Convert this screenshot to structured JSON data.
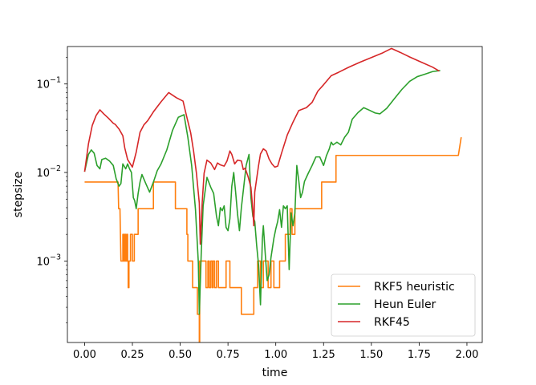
{
  "chart_data": {
    "type": "line",
    "title": "",
    "xlabel": "time",
    "ylabel": "stepsize",
    "xlim": [
      -0.09,
      2.08
    ],
    "ylim": [
      0.00012,
      0.265
    ],
    "yscale": "log",
    "grid": false,
    "legend_position": "lower-right",
    "x_ticks": [
      0.0,
      0.25,
      0.5,
      0.75,
      1.0,
      1.25,
      1.5,
      1.75,
      2.0
    ],
    "x_tick_labels": [
      "0.00",
      "0.25",
      "0.50",
      "0.75",
      "1.00",
      "1.25",
      "1.50",
      "1.75",
      "2.00"
    ],
    "y_ticks": [
      0.001,
      0.01,
      0.1
    ],
    "y_tick_labels": [
      {
        "base": "10",
        "exp": "−3"
      },
      {
        "base": "10",
        "exp": "−2"
      },
      {
        "base": "10",
        "exp": "−1"
      }
    ],
    "series": [
      {
        "name": "RKF5 heuristic",
        "color": "#ff7f0e",
        "points": [
          [
            0.0,
            0.0078
          ],
          [
            0.175,
            0.0078
          ],
          [
            0.178,
            0.0039
          ],
          [
            0.185,
            0.0039
          ],
          [
            0.19,
            0.001
          ],
          [
            0.2,
            0.001
          ],
          [
            0.2,
            0.002
          ],
          [
            0.205,
            0.002
          ],
          [
            0.205,
            0.001
          ],
          [
            0.21,
            0.001
          ],
          [
            0.21,
            0.002
          ],
          [
            0.215,
            0.002
          ],
          [
            0.215,
            0.001
          ],
          [
            0.22,
            0.001
          ],
          [
            0.22,
            0.002
          ],
          [
            0.225,
            0.002
          ],
          [
            0.225,
            0.001
          ],
          [
            0.228,
            0.001
          ],
          [
            0.228,
            0.0005
          ],
          [
            0.232,
            0.0005
          ],
          [
            0.232,
            0.001
          ],
          [
            0.24,
            0.001
          ],
          [
            0.24,
            0.002
          ],
          [
            0.25,
            0.002
          ],
          [
            0.25,
            0.001
          ],
          [
            0.26,
            0.001
          ],
          [
            0.26,
            0.002
          ],
          [
            0.28,
            0.002
          ],
          [
            0.28,
            0.0039
          ],
          [
            0.36,
            0.0039
          ],
          [
            0.36,
            0.0078
          ],
          [
            0.475,
            0.0078
          ],
          [
            0.475,
            0.0039
          ],
          [
            0.535,
            0.0039
          ],
          [
            0.535,
            0.002
          ],
          [
            0.54,
            0.002
          ],
          [
            0.54,
            0.001
          ],
          [
            0.565,
            0.001
          ],
          [
            0.565,
            0.0005
          ],
          [
            0.59,
            0.0005
          ],
          [
            0.59,
            0.00025
          ],
          [
            0.6,
            0.00025
          ],
          [
            0.6,
            0.00012
          ],
          [
            0.602,
            0.00012
          ],
          [
            0.602,
            0.001
          ],
          [
            0.635,
            0.001
          ],
          [
            0.635,
            0.0005
          ],
          [
            0.645,
            0.0005
          ],
          [
            0.645,
            0.001
          ],
          [
            0.652,
            0.001
          ],
          [
            0.652,
            0.0005
          ],
          [
            0.66,
            0.0005
          ],
          [
            0.66,
            0.001
          ],
          [
            0.668,
            0.001
          ],
          [
            0.668,
            0.0005
          ],
          [
            0.672,
            0.0005
          ],
          [
            0.672,
            0.001
          ],
          [
            0.68,
            0.001
          ],
          [
            0.68,
            0.0005
          ],
          [
            0.69,
            0.0005
          ],
          [
            0.69,
            0.001
          ],
          [
            0.7,
            0.001
          ],
          [
            0.7,
            0.0005
          ],
          [
            0.74,
            0.0005
          ],
          [
            0.74,
            0.001
          ],
          [
            0.76,
            0.001
          ],
          [
            0.76,
            0.0005
          ],
          [
            0.82,
            0.0005
          ],
          [
            0.82,
            0.00025
          ],
          [
            0.885,
            0.00025
          ],
          [
            0.885,
            0.0005
          ],
          [
            0.905,
            0.0005
          ],
          [
            0.905,
            0.001
          ],
          [
            0.92,
            0.001
          ],
          [
            0.92,
            0.0005
          ],
          [
            0.935,
            0.0005
          ],
          [
            0.935,
            0.001
          ],
          [
            0.96,
            0.001
          ],
          [
            0.96,
            0.0005
          ],
          [
            0.975,
            0.0005
          ],
          [
            0.975,
            0.001
          ],
          [
            0.99,
            0.001
          ],
          [
            0.99,
            0.0005
          ],
          [
            1.02,
            0.0005
          ],
          [
            1.02,
            0.001
          ],
          [
            1.05,
            0.001
          ],
          [
            1.05,
            0.002
          ],
          [
            1.075,
            0.002
          ],
          [
            1.075,
            0.0039
          ],
          [
            1.085,
            0.0039
          ],
          [
            1.085,
            0.002
          ],
          [
            1.1,
            0.002
          ],
          [
            1.1,
            0.0039
          ],
          [
            1.24,
            0.0039
          ],
          [
            1.24,
            0.0078
          ],
          [
            1.315,
            0.0078
          ],
          [
            1.315,
            0.0156
          ],
          [
            1.955,
            0.0156
          ],
          [
            1.97,
            0.025
          ]
        ]
      },
      {
        "name": "Heun Euler",
        "color": "#2ca02c",
        "points": [
          [
            0.0,
            0.0102
          ],
          [
            0.02,
            0.016
          ],
          [
            0.035,
            0.018
          ],
          [
            0.05,
            0.0165
          ],
          [
            0.065,
            0.012
          ],
          [
            0.08,
            0.011
          ],
          [
            0.09,
            0.014
          ],
          [
            0.11,
            0.0145
          ],
          [
            0.13,
            0.0135
          ],
          [
            0.15,
            0.012
          ],
          [
            0.165,
            0.0085
          ],
          [
            0.18,
            0.007
          ],
          [
            0.19,
            0.0075
          ],
          [
            0.2,
            0.0125
          ],
          [
            0.215,
            0.011
          ],
          [
            0.225,
            0.0125
          ],
          [
            0.235,
            0.011
          ],
          [
            0.245,
            0.01
          ],
          [
            0.255,
            0.0052
          ],
          [
            0.262,
            0.0048
          ],
          [
            0.27,
            0.0039
          ],
          [
            0.28,
            0.0058
          ],
          [
            0.29,
            0.0078
          ],
          [
            0.3,
            0.0095
          ],
          [
            0.32,
            0.0075
          ],
          [
            0.34,
            0.006
          ],
          [
            0.36,
            0.0078
          ],
          [
            0.38,
            0.0105
          ],
          [
            0.4,
            0.0125
          ],
          [
            0.43,
            0.018
          ],
          [
            0.46,
            0.03
          ],
          [
            0.49,
            0.042
          ],
          [
            0.52,
            0.045
          ],
          [
            0.54,
            0.025
          ],
          [
            0.56,
            0.012
          ],
          [
            0.58,
            0.0038
          ],
          [
            0.595,
            0.00095
          ],
          [
            0.6,
            0.00025
          ],
          [
            0.61,
            0.0012
          ],
          [
            0.62,
            0.0042
          ],
          [
            0.64,
            0.0088
          ],
          [
            0.66,
            0.0068
          ],
          [
            0.675,
            0.0058
          ],
          [
            0.69,
            0.0032
          ],
          [
            0.7,
            0.0025
          ],
          [
            0.71,
            0.004
          ],
          [
            0.72,
            0.0037
          ],
          [
            0.73,
            0.0042
          ],
          [
            0.74,
            0.0024
          ],
          [
            0.75,
            0.0022
          ],
          [
            0.76,
            0.003
          ],
          [
            0.77,
            0.007
          ],
          [
            0.78,
            0.01
          ],
          [
            0.79,
            0.006
          ],
          [
            0.8,
            0.0034
          ],
          [
            0.81,
            0.0022
          ],
          [
            0.82,
            0.004
          ],
          [
            0.83,
            0.0062
          ],
          [
            0.845,
            0.012
          ],
          [
            0.86,
            0.016
          ],
          [
            0.87,
            0.0052
          ],
          [
            0.88,
            0.0032
          ],
          [
            0.89,
            0.0028
          ],
          [
            0.9,
            0.0015
          ],
          [
            0.91,
            0.0009
          ],
          [
            0.92,
            0.00032
          ],
          [
            0.93,
            0.0018
          ],
          [
            0.935,
            0.0025
          ],
          [
            0.945,
            0.0012
          ],
          [
            0.955,
            0.0006
          ],
          [
            0.965,
            0.0007
          ],
          [
            0.975,
            0.0011
          ],
          [
            0.99,
            0.0018
          ],
          [
            1.0,
            0.0023
          ],
          [
            1.01,
            0.0028
          ],
          [
            1.02,
            0.0038
          ],
          [
            1.03,
            0.0024
          ],
          [
            1.04,
            0.0042
          ],
          [
            1.05,
            0.0039
          ],
          [
            1.06,
            0.0042
          ],
          [
            1.07,
            0.0008
          ],
          [
            1.08,
            0.0035
          ],
          [
            1.09,
            0.0025
          ],
          [
            1.1,
            0.0035
          ],
          [
            1.11,
            0.012
          ],
          [
            1.12,
            0.0082
          ],
          [
            1.13,
            0.0052
          ],
          [
            1.14,
            0.006
          ],
          [
            1.15,
            0.0079
          ],
          [
            1.17,
            0.0098
          ],
          [
            1.19,
            0.012
          ],
          [
            1.21,
            0.015
          ],
          [
            1.23,
            0.015
          ],
          [
            1.25,
            0.012
          ],
          [
            1.265,
            0.0155
          ],
          [
            1.28,
            0.0185
          ],
          [
            1.29,
            0.022
          ],
          [
            1.3,
            0.0205
          ],
          [
            1.32,
            0.022
          ],
          [
            1.34,
            0.0205
          ],
          [
            1.36,
            0.025
          ],
          [
            1.38,
            0.0285
          ],
          [
            1.4,
            0.04
          ],
          [
            1.43,
            0.0475
          ],
          [
            1.46,
            0.054
          ],
          [
            1.49,
            0.0505
          ],
          [
            1.52,
            0.047
          ],
          [
            1.545,
            0.046
          ],
          [
            1.58,
            0.053
          ],
          [
            1.62,
            0.068
          ],
          [
            1.66,
            0.087
          ],
          [
            1.7,
            0.107
          ],
          [
            1.74,
            0.121
          ],
          [
            1.78,
            0.129
          ],
          [
            1.82,
            0.138
          ],
          [
            1.86,
            0.142
          ]
        ]
      },
      {
        "name": "RKF45",
        "color": "#d62728",
        "points": [
          [
            0.0,
            0.0102
          ],
          [
            0.02,
            0.021
          ],
          [
            0.04,
            0.034
          ],
          [
            0.06,
            0.044
          ],
          [
            0.08,
            0.051
          ],
          [
            0.1,
            0.046
          ],
          [
            0.125,
            0.041
          ],
          [
            0.15,
            0.036
          ],
          [
            0.16,
            0.035
          ],
          [
            0.18,
            0.031
          ],
          [
            0.2,
            0.026
          ],
          [
            0.21,
            0.019
          ],
          [
            0.225,
            0.014
          ],
          [
            0.25,
            0.0115
          ],
          [
            0.27,
            0.017
          ],
          [
            0.29,
            0.0285
          ],
          [
            0.31,
            0.0345
          ],
          [
            0.33,
            0.0385
          ],
          [
            0.36,
            0.0485
          ],
          [
            0.4,
            0.063
          ],
          [
            0.44,
            0.08
          ],
          [
            0.48,
            0.07
          ],
          [
            0.515,
            0.064
          ],
          [
            0.535,
            0.042
          ],
          [
            0.555,
            0.028
          ],
          [
            0.57,
            0.0175
          ],
          [
            0.585,
            0.0098
          ],
          [
            0.6,
            0.0045
          ],
          [
            0.605,
            0.00155
          ],
          [
            0.615,
            0.0045
          ],
          [
            0.625,
            0.0098
          ],
          [
            0.64,
            0.0138
          ],
          [
            0.66,
            0.0128
          ],
          [
            0.68,
            0.0108
          ],
          [
            0.695,
            0.0128
          ],
          [
            0.71,
            0.0122
          ],
          [
            0.73,
            0.0118
          ],
          [
            0.745,
            0.0135
          ],
          [
            0.76,
            0.0175
          ],
          [
            0.77,
            0.016
          ],
          [
            0.785,
            0.0125
          ],
          [
            0.8,
            0.0138
          ],
          [
            0.82,
            0.0135
          ],
          [
            0.83,
            0.0108
          ],
          [
            0.84,
            0.0112
          ],
          [
            0.855,
            0.009
          ],
          [
            0.87,
            0.0068
          ],
          [
            0.88,
            0.0038
          ],
          [
            0.885,
            0.0025
          ],
          [
            0.89,
            0.006
          ],
          [
            0.9,
            0.0085
          ],
          [
            0.91,
            0.012
          ],
          [
            0.92,
            0.0162
          ],
          [
            0.935,
            0.0185
          ],
          [
            0.95,
            0.0175
          ],
          [
            0.965,
            0.0142
          ],
          [
            0.98,
            0.0125
          ],
          [
            0.995,
            0.0115
          ],
          [
            1.01,
            0.0118
          ],
          [
            1.03,
            0.0165
          ],
          [
            1.06,
            0.0265
          ],
          [
            1.09,
            0.037
          ],
          [
            1.12,
            0.05
          ],
          [
            1.16,
            0.054
          ],
          [
            1.19,
            0.062
          ],
          [
            1.22,
            0.083
          ],
          [
            1.25,
            0.098
          ],
          [
            1.29,
            0.124
          ],
          [
            1.33,
            0.136
          ],
          [
            1.38,
            0.154
          ],
          [
            1.44,
            0.176
          ],
          [
            1.5,
            0.199
          ],
          [
            1.56,
            0.225
          ],
          [
            1.605,
            0.252
          ],
          [
            1.65,
            0.228
          ],
          [
            1.7,
            0.202
          ],
          [
            1.76,
            0.177
          ],
          [
            1.82,
            0.155
          ],
          [
            1.855,
            0.14
          ]
        ]
      }
    ]
  }
}
